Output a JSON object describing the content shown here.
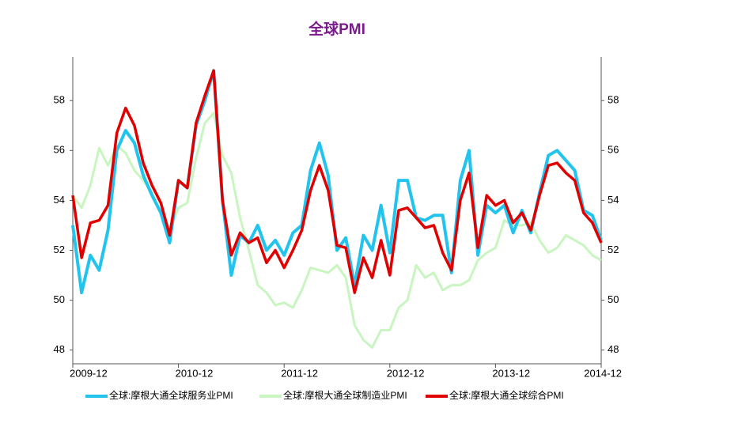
{
  "chart_data": {
    "type": "line",
    "title": "全球PMI",
    "categories": [
      "2009-12",
      null,
      null,
      null,
      null,
      null,
      null,
      null,
      null,
      null,
      null,
      null,
      "2010-12",
      null,
      null,
      null,
      null,
      null,
      null,
      null,
      null,
      null,
      null,
      null,
      "2011-12",
      null,
      null,
      null,
      null,
      null,
      null,
      null,
      null,
      null,
      null,
      null,
      "2012-12",
      null,
      null,
      null,
      null,
      null,
      null,
      null,
      null,
      null,
      null,
      null,
      "2013-12",
      null,
      null,
      null,
      null,
      null,
      null,
      null,
      null,
      null,
      null,
      null,
      "2014-12"
    ],
    "series": [
      {
        "name": "全球:摩根大通全球服务业PMI",
        "color": "#22c4ee",
        "width": 4,
        "values": [
          53.0,
          50.3,
          51.8,
          51.2,
          52.8,
          56.0,
          56.8,
          56.3,
          55.0,
          54.2,
          53.5,
          52.3,
          54.8,
          54.5,
          57.0,
          58.0,
          59.2,
          54.0,
          51.0,
          52.6,
          52.3,
          53.0,
          52.0,
          52.4,
          51.8,
          52.7,
          53.0,
          55.2,
          56.3,
          55.0,
          52.0,
          52.5,
          50.6,
          52.6,
          52.0,
          53.8,
          51.9,
          54.8,
          54.8,
          53.3,
          53.2,
          53.4,
          53.4,
          51.1,
          54.8,
          56.0,
          51.8,
          53.8,
          53.5,
          53.8,
          52.7,
          53.6,
          52.7,
          54.3,
          55.8,
          56.0,
          55.6,
          55.2,
          53.6,
          53.4,
          52.4
        ]
      },
      {
        "name": "全球:摩根大通全球制造业PMI",
        "color": "#c8f5c0",
        "width": 3,
        "values": [
          54.2,
          53.7,
          54.6,
          56.1,
          55.4,
          56.2,
          55.9,
          55.2,
          54.8,
          54.3,
          53.5,
          52.8,
          53.7,
          53.9,
          55.7,
          57.1,
          57.5,
          55.8,
          55.1,
          53.3,
          52.0,
          50.6,
          50.3,
          49.8,
          49.9,
          49.7,
          50.4,
          51.3,
          51.2,
          51.1,
          51.4,
          50.9,
          49.0,
          48.4,
          48.1,
          48.8,
          48.8,
          49.7,
          50.0,
          51.4,
          50.9,
          51.1,
          50.4,
          50.6,
          50.6,
          50.8,
          51.6,
          51.9,
          52.1,
          53.2,
          53.0,
          53.0,
          53.1,
          52.4,
          51.9,
          52.1,
          52.6,
          52.4,
          52.2,
          51.8,
          51.6
        ]
      },
      {
        "name": "全球:摩根大通全球综合PMI",
        "color": "#e00000",
        "width": 3.5,
        "values": [
          54.2,
          51.7,
          53.1,
          53.2,
          53.8,
          56.7,
          57.7,
          57.0,
          55.5,
          54.6,
          53.9,
          52.6,
          54.8,
          54.5,
          57.1,
          58.2,
          59.2,
          54.0,
          51.8,
          52.7,
          52.3,
          52.5,
          51.5,
          52.0,
          51.3,
          52.0,
          52.8,
          54.4,
          55.4,
          54.4,
          52.2,
          52.1,
          50.3,
          51.7,
          50.9,
          52.4,
          51.0,
          53.6,
          53.7,
          53.3,
          52.9,
          53.0,
          51.9,
          51.2,
          54.0,
          55.1,
          52.1,
          54.2,
          53.8,
          54.0,
          53.1,
          53.5,
          52.8,
          54.2,
          55.4,
          55.5,
          55.1,
          54.8,
          53.5,
          53.1,
          52.3
        ]
      }
    ],
    "ylim": [
      47.45,
      59.75
    ],
    "yticks": [
      48,
      50,
      52,
      54,
      56,
      58
    ],
    "y2lim": [
      47.45,
      59.75
    ],
    "y2ticks": [
      48,
      50,
      52,
      54,
      56,
      58
    ],
    "grid": false,
    "legend": "bottom"
  }
}
